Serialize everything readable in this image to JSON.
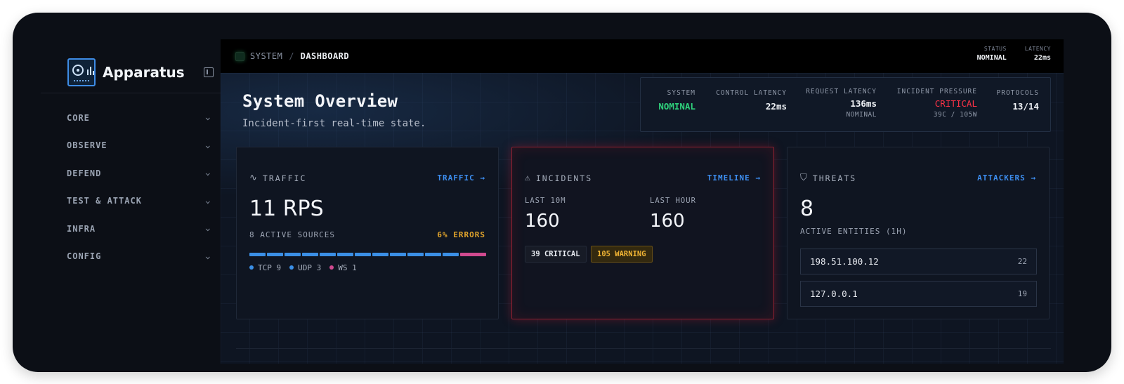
{
  "app": {
    "name": "Apparatus"
  },
  "sidebar": {
    "items": [
      {
        "label": "CORE"
      },
      {
        "label": "OBSERVE"
      },
      {
        "label": "DEFEND"
      },
      {
        "label": "TEST & ATTACK"
      },
      {
        "label": "INFRA"
      },
      {
        "label": "CONFIG"
      }
    ]
  },
  "breadcrumb": {
    "root": "SYSTEM",
    "separator": "/",
    "current": "DASHBOARD"
  },
  "topbar": {
    "status_label": "STATUS",
    "status_value": "NOMINAL",
    "latency_label": "LATENCY",
    "latency_value": "22ms"
  },
  "page": {
    "title": "System Overview",
    "subtitle": "Incident-first real-time state."
  },
  "summary": {
    "system_label": "SYSTEM",
    "system_value": "NOMINAL",
    "control_latency_label": "CONTROL LATENCY",
    "control_latency_value": "22ms",
    "request_latency_label": "REQUEST LATENCY",
    "request_latency_value": "136ms",
    "request_latency_sub": "NOMINAL",
    "incident_pressure_label": "INCIDENT PRESSURE",
    "incident_pressure_value": "CRITICAL",
    "incident_pressure_sub": "39C / 105W",
    "protocols_label": "PROTOCOLS",
    "protocols_value": "13/14"
  },
  "traffic": {
    "title": "TRAFFIC",
    "link": "TRAFFIC →",
    "rps": "11 RPS",
    "sources": "8 ACTIVE SOURCES",
    "errors": "6% ERRORS",
    "legend": [
      {
        "label": "TCP 9",
        "color": "#3b8fe6"
      },
      {
        "label": "UDP 3",
        "color": "#3b8fe6"
      },
      {
        "label": "WS 1",
        "color": "#d04a8f"
      }
    ]
  },
  "incidents": {
    "title": "INCIDENTS",
    "link": "TIMELINE →",
    "last10_label": "LAST 10M",
    "last10_value": "160",
    "lasthour_label": "LAST HOUR",
    "lasthour_value": "160",
    "critical_badge": "39 CRITICAL",
    "warning_badge": "105 WARNING"
  },
  "threats": {
    "title": "THREATS",
    "link": "ATTACKERS →",
    "count": "8",
    "label": "ACTIVE ENTITIES (1H)",
    "attackers": [
      {
        "ip": "198.51.100.12",
        "count": "22"
      },
      {
        "ip": "127.0.0.1",
        "count": "19"
      }
    ]
  },
  "colors": {
    "accent": "#3d8ef0",
    "nominal": "#2fd27c",
    "critical": "#ff3347",
    "warning": "#e3a52c",
    "ws": "#d04a8f"
  },
  "icons": {
    "traffic": "activity-icon",
    "incidents": "warning-triangle-icon",
    "threats": "shield-icon"
  }
}
